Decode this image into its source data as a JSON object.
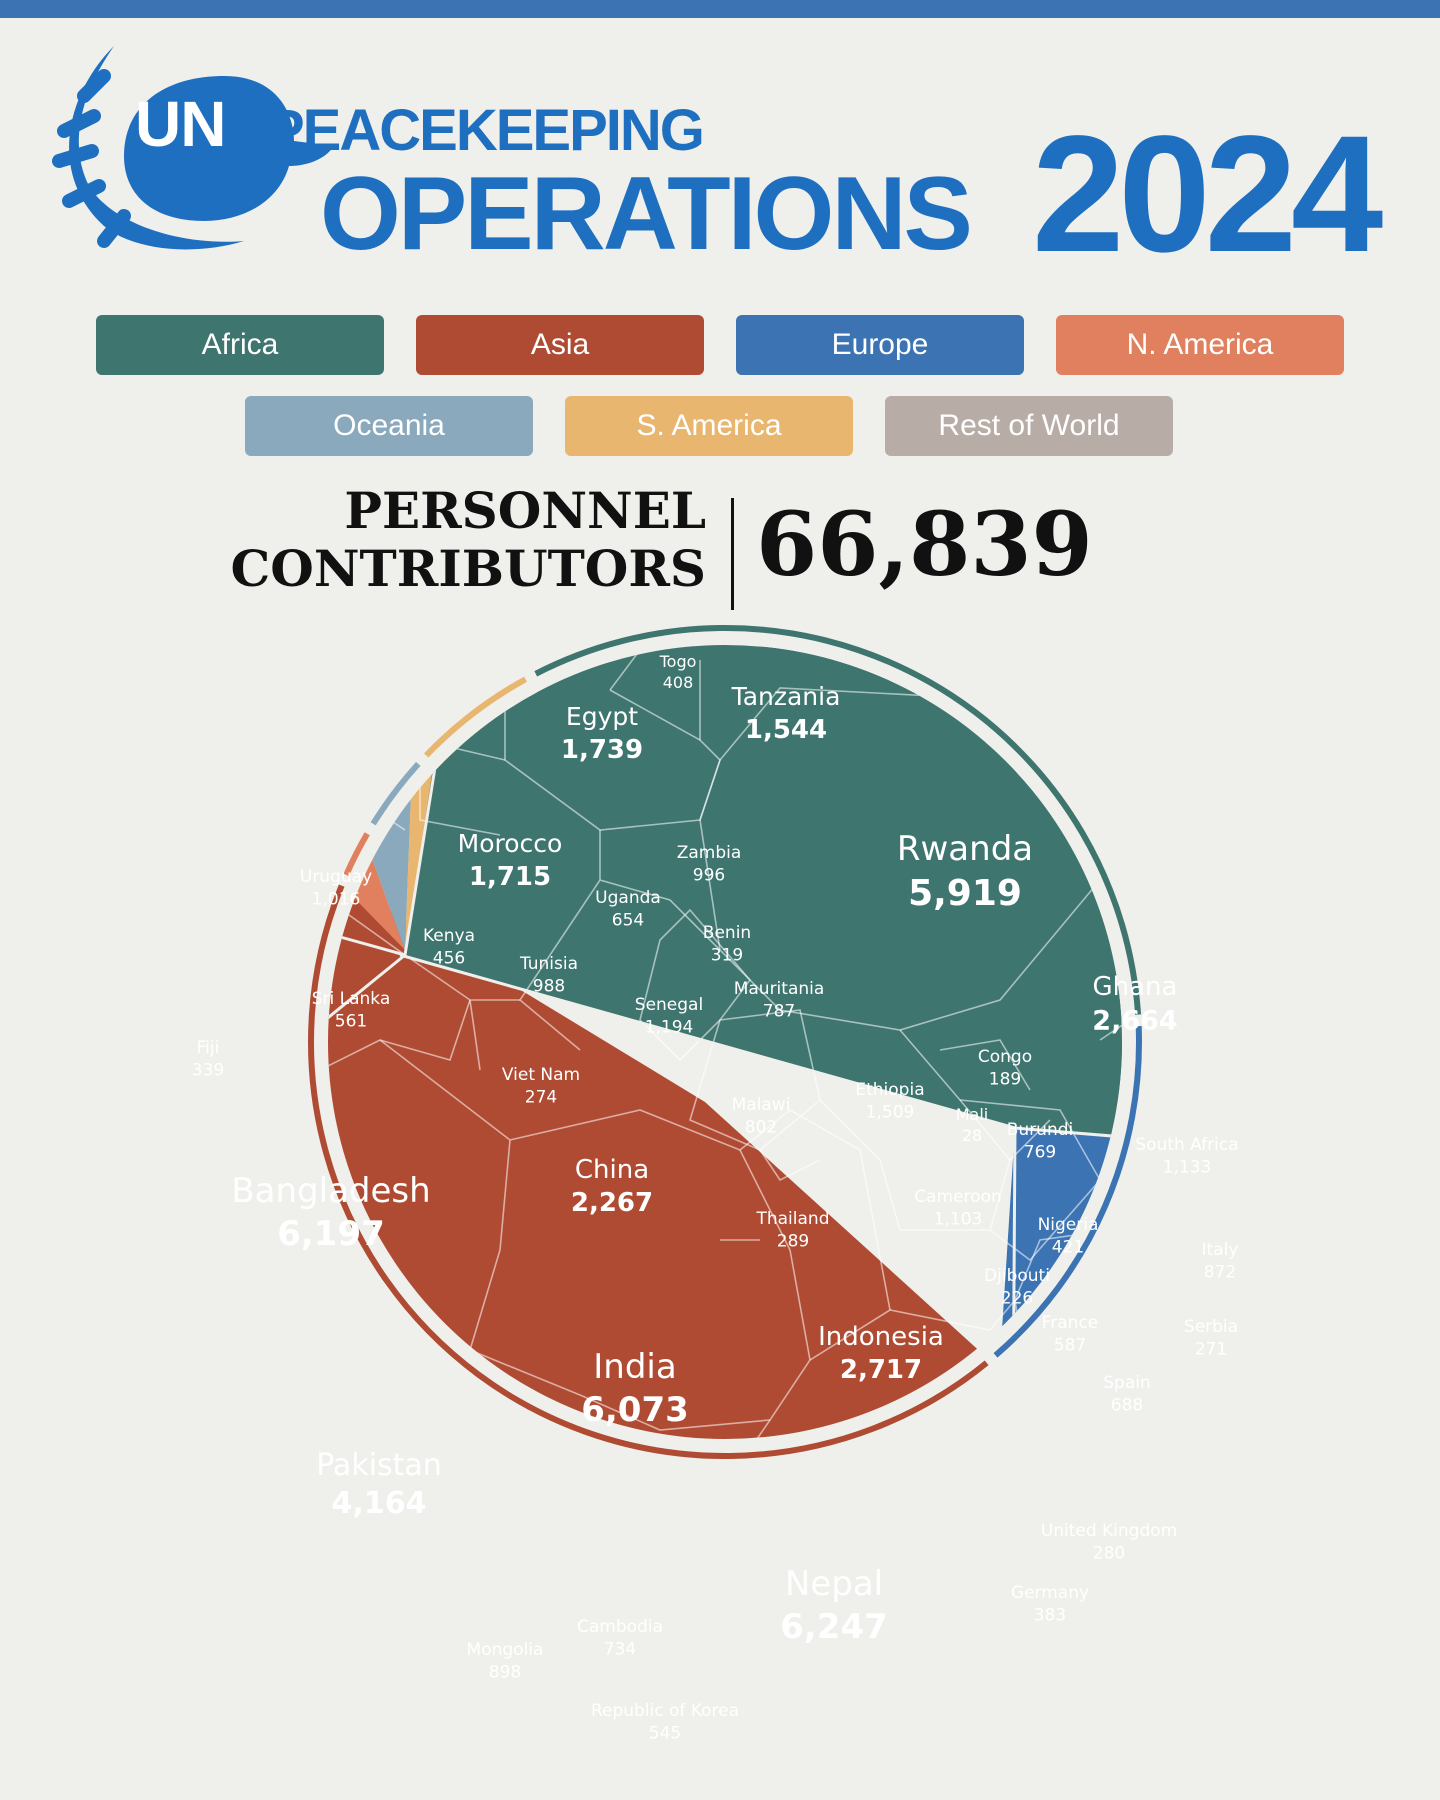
{
  "header": {
    "title_un": "UN",
    "title_peacekeeping": "PEACEKEEPING",
    "title_operations": "OPERATIONS",
    "year": "2024"
  },
  "legend": [
    {
      "label": "Africa",
      "color": "#3f756f"
    },
    {
      "label": "Asia",
      "color": "#b04b33"
    },
    {
      "label": "Europe",
      "color": "#3b73b3"
    },
    {
      "label": "N. America",
      "color": "#e0805e"
    },
    {
      "label": "Oceania",
      "color": "#8aa9bd"
    },
    {
      "label": "S. America",
      "color": "#e8b66e"
    },
    {
      "label": "Rest of World",
      "color": "#b8ada6"
    }
  ],
  "summary": {
    "label_line1": "PERSONNEL",
    "label_line2": "CONTRIBUTORS",
    "total": "66,839"
  },
  "chart_data": {
    "type": "voronoi-treemap",
    "total": 66839,
    "groups": [
      {
        "region": "Africa",
        "color": "#3f756f",
        "items": [
          {
            "name": "Rwanda",
            "label": "5,919",
            "value": 5919
          },
          {
            "name": "Ghana",
            "label": "2,664",
            "value": 2664
          },
          {
            "name": "Egypt",
            "label": "1,739",
            "value": 1739
          },
          {
            "name": "Morocco",
            "label": "1,715",
            "value": 1715
          },
          {
            "name": "Tanzania",
            "label": "1,544",
            "value": 1544
          },
          {
            "name": "Ethiopia",
            "label": "1,509",
            "value": 1509
          },
          {
            "name": "Senegal",
            "label": "1,194",
            "value": 1194
          },
          {
            "name": "South Africa",
            "label": "1,133",
            "value": 1133
          },
          {
            "name": "Cameroon",
            "label": "1,103",
            "value": 1103
          },
          {
            "name": "Zambia",
            "label": "996",
            "value": 996
          },
          {
            "name": "Tunisia",
            "label": "988",
            "value": 988
          },
          {
            "name": "Malawi",
            "label": "802",
            "value": 802
          },
          {
            "name": "Mauritania",
            "label": "787",
            "value": 787
          },
          {
            "name": "Burundi",
            "label": "769",
            "value": 769
          },
          {
            "name": "Uganda",
            "label": "654",
            "value": 654
          },
          {
            "name": "Kenya",
            "label": "456",
            "value": 456
          },
          {
            "name": "Nigeria",
            "label": "421",
            "value": 421
          },
          {
            "name": "Togo",
            "label": "408",
            "value": 408
          },
          {
            "name": "Benin",
            "label": "319",
            "value": 319
          },
          {
            "name": "Djibouti",
            "label": "226",
            "value": 226
          },
          {
            "name": "Congo",
            "label": "189",
            "value": 189
          },
          {
            "name": "Mali",
            "label": "28",
            "value": 28
          }
        ]
      },
      {
        "region": "Asia",
        "color": "#b04b33",
        "items": [
          {
            "name": "Nepal",
            "label": "6,247",
            "value": 6247
          },
          {
            "name": "Bangladesh",
            "label": "6,197",
            "value": 6197
          },
          {
            "name": "India",
            "label": "6,073",
            "value": 6073
          },
          {
            "name": "Pakistan",
            "label": "4,164",
            "value": 4164
          },
          {
            "name": "Indonesia",
            "label": "2,717",
            "value": 2717
          },
          {
            "name": "China",
            "label": "2,267",
            "value": 2267
          },
          {
            "name": "Mongolia",
            "label": "898",
            "value": 898
          },
          {
            "name": "Cambodia",
            "label": "734",
            "value": 734
          },
          {
            "name": "Sri Lanka",
            "label": "561",
            "value": 561
          },
          {
            "name": "Republic of Korea",
            "label": "545",
            "value": 545
          },
          {
            "name": "Thailand",
            "label": "289",
            "value": 289
          },
          {
            "name": "Viet Nam",
            "label": "274",
            "value": 274
          }
        ]
      },
      {
        "region": "Europe",
        "color": "#3b73b3",
        "items": [
          {
            "name": "Italy",
            "label": "872",
            "value": 872
          },
          {
            "name": "Spain",
            "label": "688",
            "value": 688
          },
          {
            "name": "France",
            "label": "587",
            "value": 587
          },
          {
            "name": "Germany",
            "label": "383",
            "value": 383
          },
          {
            "name": "United Kingdom",
            "label": "280",
            "value": 280
          },
          {
            "name": "Serbia",
            "label": "271",
            "value": 271
          }
        ]
      },
      {
        "region": "S. America",
        "color": "#e8b66e",
        "items": [
          {
            "name": "Uruguay",
            "label": "1,016",
            "value": 1016
          }
        ]
      },
      {
        "region": "Oceania",
        "color": "#8aa9bd",
        "items": [
          {
            "name": "Fiji",
            "label": "339",
            "value": 339
          }
        ]
      }
    ]
  }
}
